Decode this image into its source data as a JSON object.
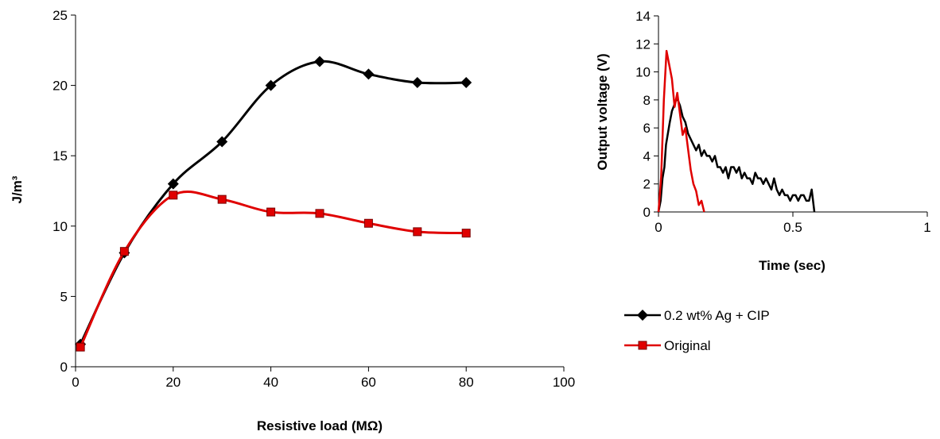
{
  "chart_data": [
    {
      "type": "line",
      "xlabel": "Resistive load (MΩ)",
      "ylabel": "J/m³",
      "xlim": [
        0,
        100
      ],
      "ylim": [
        0,
        25
      ],
      "xticks": [
        "0",
        "20",
        "40",
        "60",
        "80",
        "100"
      ],
      "yticks": [
        "0",
        "5",
        "10",
        "15",
        "20",
        "25"
      ],
      "grid": false,
      "legend": "right",
      "series": [
        {
          "name": "0.2 wt% Ag + CIP",
          "color": "#000000",
          "marker": "diamond",
          "x": [
            1,
            10,
            20,
            30,
            40,
            50,
            60,
            70,
            80
          ],
          "y": [
            1.6,
            8.1,
            13.0,
            16.0,
            20.0,
            21.7,
            20.8,
            20.2,
            20.2
          ]
        },
        {
          "name": "Original",
          "color": "#e00000",
          "marker": "square",
          "x": [
            1,
            10,
            20,
            30,
            40,
            50,
            60,
            70,
            80
          ],
          "y": [
            1.4,
            8.2,
            12.2,
            11.9,
            11.0,
            10.9,
            10.2,
            9.6,
            9.5
          ]
        }
      ]
    },
    {
      "type": "line",
      "xlabel": "Time (sec)",
      "ylabel": "Output voltage (V)",
      "xlim": [
        0,
        1
      ],
      "ylim": [
        0,
        14
      ],
      "xticks": [
        "0",
        "0.5",
        "1"
      ],
      "yticks": [
        "0",
        "2",
        "4",
        "6",
        "8",
        "10",
        "12",
        "14"
      ],
      "grid": false,
      "series": [
        {
          "name": "0.2 wt% Ag + CIP",
          "color": "#000000",
          "x": [
            0.0,
            0.008,
            0.015,
            0.022,
            0.028,
            0.035,
            0.042,
            0.05,
            0.058,
            0.065,
            0.072,
            0.08,
            0.09,
            0.1,
            0.11,
            0.12,
            0.13,
            0.14,
            0.15,
            0.16,
            0.17,
            0.18,
            0.19,
            0.2,
            0.21,
            0.22,
            0.23,
            0.24,
            0.25,
            0.26,
            0.27,
            0.28,
            0.29,
            0.3,
            0.31,
            0.32,
            0.33,
            0.34,
            0.35,
            0.36,
            0.37,
            0.38,
            0.39,
            0.4,
            0.41,
            0.42,
            0.43,
            0.44,
            0.45,
            0.46,
            0.47,
            0.48,
            0.49,
            0.5,
            0.51,
            0.52,
            0.53,
            0.54,
            0.55,
            0.56,
            0.57,
            0.58
          ],
          "y": [
            0,
            0.8,
            2.4,
            3.2,
            4.8,
            5.6,
            6.4,
            7.2,
            7.6,
            8.0,
            8.0,
            7.6,
            6.8,
            6.4,
            5.6,
            5.2,
            4.8,
            4.4,
            4.8,
            4.0,
            4.4,
            4.0,
            4.0,
            3.6,
            4.0,
            3.2,
            3.2,
            2.8,
            3.2,
            2.4,
            3.2,
            3.2,
            2.8,
            3.2,
            2.4,
            2.8,
            2.4,
            2.4,
            2.0,
            2.8,
            2.4,
            2.4,
            2.0,
            2.4,
            2.0,
            1.6,
            2.4,
            1.6,
            1.2,
            1.6,
            1.2,
            1.2,
            0.8,
            1.2,
            1.2,
            0.8,
            1.2,
            1.2,
            0.8,
            0.8,
            1.6,
            0
          ]
        },
        {
          "name": "Original",
          "color": "#e00000",
          "x": [
            0.0,
            0.01,
            0.02,
            0.03,
            0.04,
            0.05,
            0.06,
            0.07,
            0.08,
            0.09,
            0.1,
            0.11,
            0.12,
            0.13,
            0.14,
            0.15,
            0.16,
            0.17
          ],
          "y": [
            0,
            2.5,
            8.0,
            11.5,
            10.5,
            9.5,
            7.5,
            8.5,
            7.0,
            5.5,
            6.0,
            4.5,
            3.0,
            2.0,
            1.5,
            0.5,
            0.8,
            0
          ]
        }
      ]
    }
  ],
  "legend": {
    "items": [
      {
        "label": "0.2 wt% Ag + CIP",
        "color": "#000000",
        "marker": "diamond"
      },
      {
        "label": "Original",
        "color": "#e00000",
        "marker": "square"
      }
    ]
  }
}
